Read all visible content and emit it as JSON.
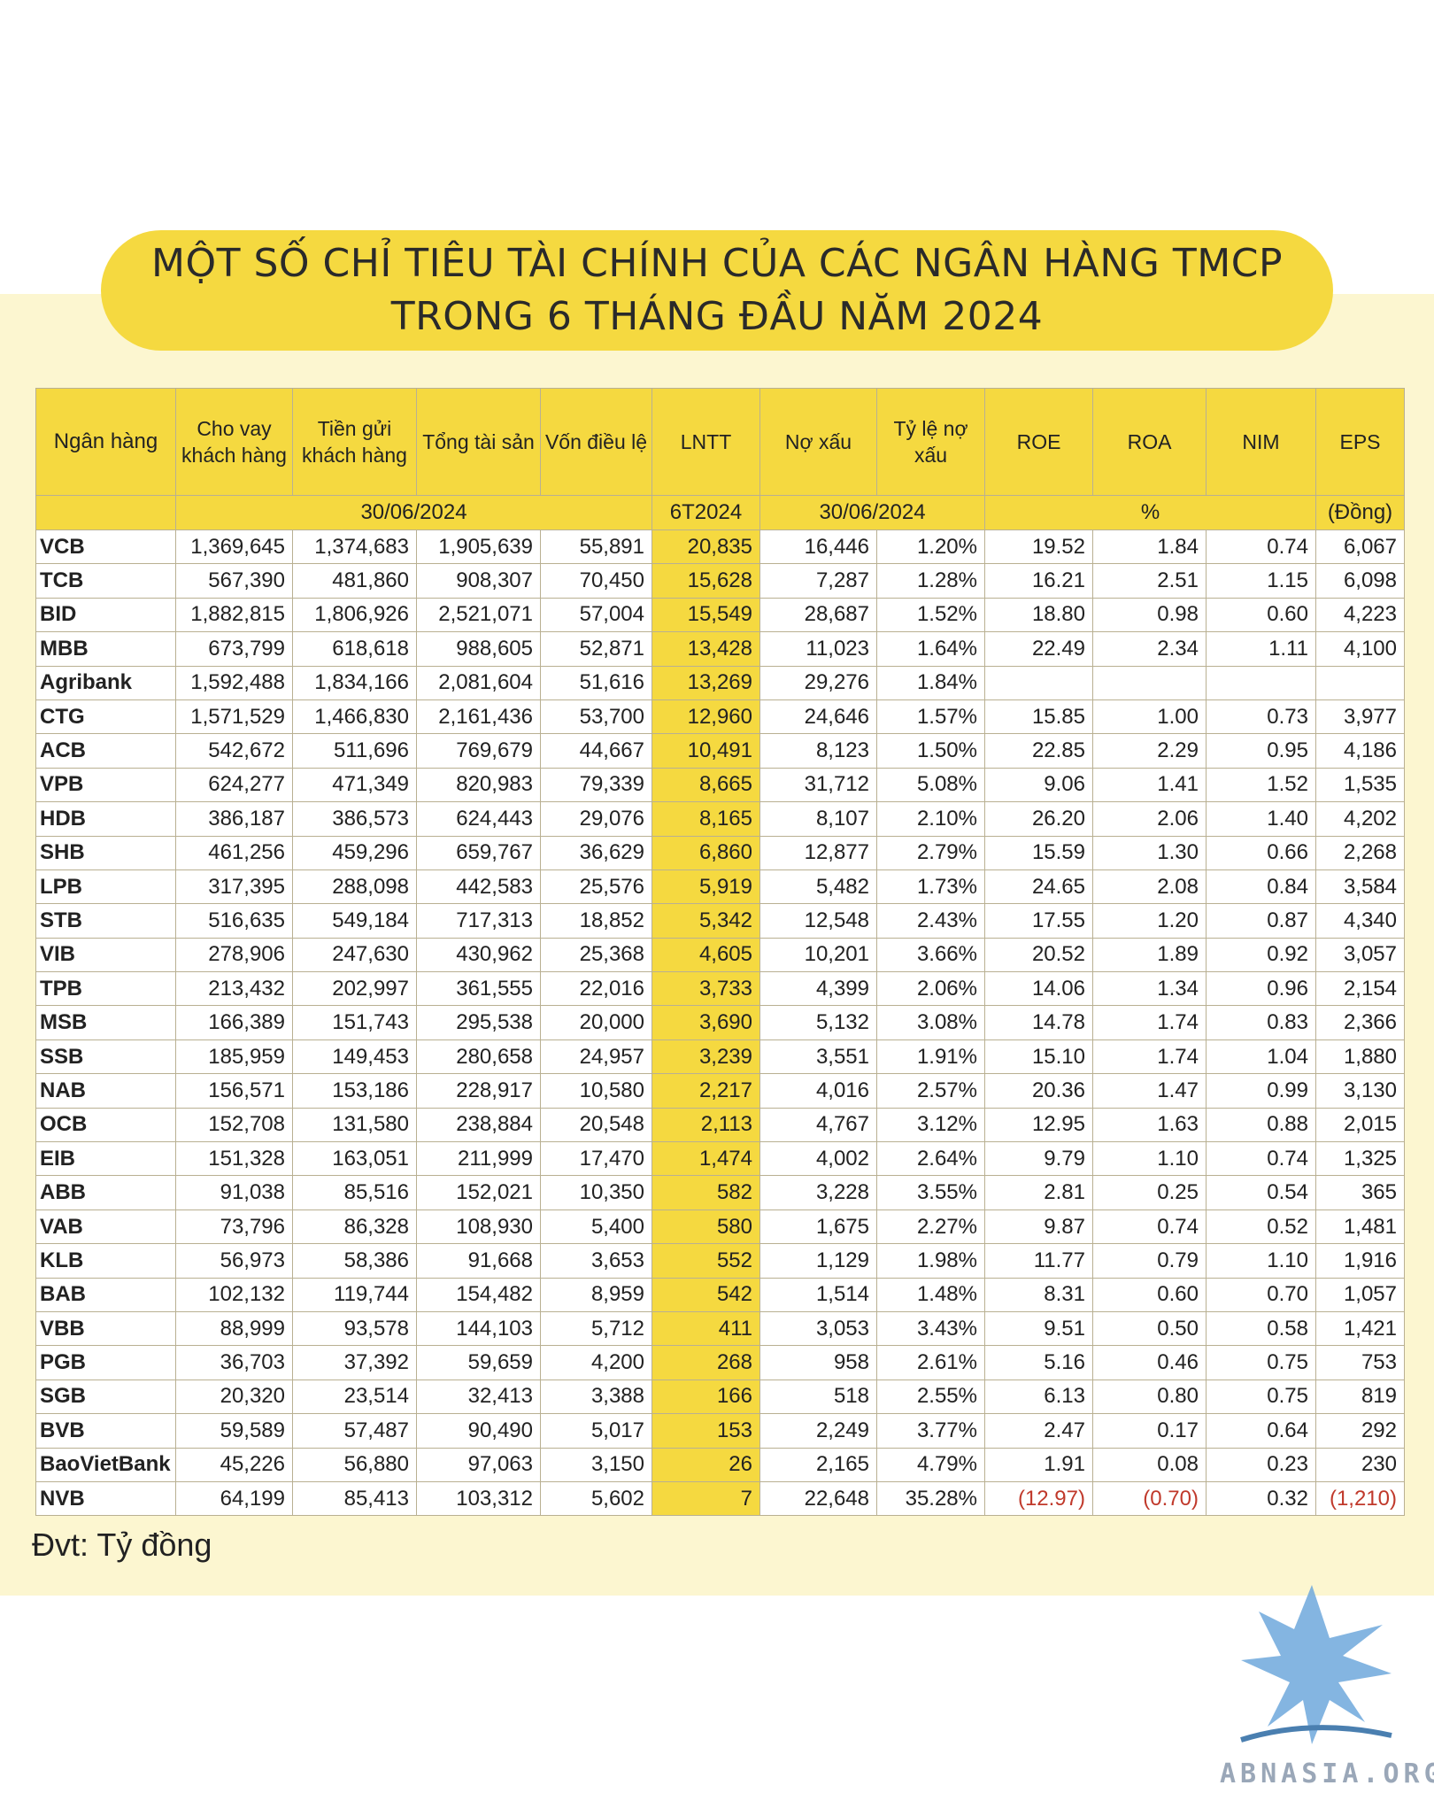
{
  "title": {
    "line1": "MỘT SỐ CHỈ TIÊU TÀI CHÍNH CỦA CÁC NGÂN HÀNG TMCP",
    "line2": "TRONG 6 THÁNG ĐẦU NĂM 2024"
  },
  "columns": {
    "bank": "Ngân hàng",
    "loans": "Cho vay khách hàng",
    "deposits": "Tiền gửi khách hàng",
    "assets": "Tổng tài sản",
    "capital": "Vốn điều lệ",
    "lntt": "LNTT",
    "npl": "Nợ xấu",
    "npl_ratio": "Tỷ lệ nợ xấu",
    "roe": "ROE",
    "roa": "ROA",
    "nim": "NIM",
    "eps": "EPS"
  },
  "subheader": {
    "date1": "30/06/2024",
    "period": "6T2024",
    "date2": "30/06/2024",
    "pct": "%",
    "eps_unit": "(Đồng)"
  },
  "colors": {
    "accent": "#f5d940",
    "panel": "#fcf6d0",
    "negative": "#c0392b"
  },
  "rows": [
    {
      "bank": "VCB",
      "loans": "1,369,645",
      "deposits": "1,374,683",
      "assets": "1,905,639",
      "capital": "55,891",
      "lntt": "20,835",
      "npl": "16,446",
      "npl_ratio": "1.20%",
      "roe": "19.52",
      "roa": "1.84",
      "nim": "0.74",
      "eps": "6,067"
    },
    {
      "bank": "TCB",
      "loans": "567,390",
      "deposits": "481,860",
      "assets": "908,307",
      "capital": "70,450",
      "lntt": "15,628",
      "npl": "7,287",
      "npl_ratio": "1.28%",
      "roe": "16.21",
      "roa": "2.51",
      "nim": "1.15",
      "eps": "6,098"
    },
    {
      "bank": "BID",
      "loans": "1,882,815",
      "deposits": "1,806,926",
      "assets": "2,521,071",
      "capital": "57,004",
      "lntt": "15,549",
      "npl": "28,687",
      "npl_ratio": "1.52%",
      "roe": "18.80",
      "roa": "0.98",
      "nim": "0.60",
      "eps": "4,223"
    },
    {
      "bank": "MBB",
      "loans": "673,799",
      "deposits": "618,618",
      "assets": "988,605",
      "capital": "52,871",
      "lntt": "13,428",
      "npl": "11,023",
      "npl_ratio": "1.64%",
      "roe": "22.49",
      "roa": "2.34",
      "nim": "1.11",
      "eps": "4,100"
    },
    {
      "bank": "Agribank",
      "loans": "1,592,488",
      "deposits": "1,834,166",
      "assets": "2,081,604",
      "capital": "51,616",
      "lntt": "13,269",
      "npl": "29,276",
      "npl_ratio": "1.84%",
      "roe": "",
      "roa": "",
      "nim": "",
      "eps": ""
    },
    {
      "bank": "CTG",
      "loans": "1,571,529",
      "deposits": "1,466,830",
      "assets": "2,161,436",
      "capital": "53,700",
      "lntt": "12,960",
      "npl": "24,646",
      "npl_ratio": "1.57%",
      "roe": "15.85",
      "roa": "1.00",
      "nim": "0.73",
      "eps": "3,977"
    },
    {
      "bank": "ACB",
      "loans": "542,672",
      "deposits": "511,696",
      "assets": "769,679",
      "capital": "44,667",
      "lntt": "10,491",
      "npl": "8,123",
      "npl_ratio": "1.50%",
      "roe": "22.85",
      "roa": "2.29",
      "nim": "0.95",
      "eps": "4,186"
    },
    {
      "bank": "VPB",
      "loans": "624,277",
      "deposits": "471,349",
      "assets": "820,983",
      "capital": "79,339",
      "lntt": "8,665",
      "npl": "31,712",
      "npl_ratio": "5.08%",
      "roe": "9.06",
      "roa": "1.41",
      "nim": "1.52",
      "eps": "1,535"
    },
    {
      "bank": "HDB",
      "loans": "386,187",
      "deposits": "386,573",
      "assets": "624,443",
      "capital": "29,076",
      "lntt": "8,165",
      "npl": "8,107",
      "npl_ratio": "2.10%",
      "roe": "26.20",
      "roa": "2.06",
      "nim": "1.40",
      "eps": "4,202"
    },
    {
      "bank": "SHB",
      "loans": "461,256",
      "deposits": "459,296",
      "assets": "659,767",
      "capital": "36,629",
      "lntt": "6,860",
      "npl": "12,877",
      "npl_ratio": "2.79%",
      "roe": "15.59",
      "roa": "1.30",
      "nim": "0.66",
      "eps": "2,268"
    },
    {
      "bank": "LPB",
      "loans": "317,395",
      "deposits": "288,098",
      "assets": "442,583",
      "capital": "25,576",
      "lntt": "5,919",
      "npl": "5,482",
      "npl_ratio": "1.73%",
      "roe": "24.65",
      "roa": "2.08",
      "nim": "0.84",
      "eps": "3,584"
    },
    {
      "bank": "STB",
      "loans": "516,635",
      "deposits": "549,184",
      "assets": "717,313",
      "capital": "18,852",
      "lntt": "5,342",
      "npl": "12,548",
      "npl_ratio": "2.43%",
      "roe": "17.55",
      "roa": "1.20",
      "nim": "0.87",
      "eps": "4,340"
    },
    {
      "bank": "VIB",
      "loans": "278,906",
      "deposits": "247,630",
      "assets": "430,962",
      "capital": "25,368",
      "lntt": "4,605",
      "npl": "10,201",
      "npl_ratio": "3.66%",
      "roe": "20.52",
      "roa": "1.89",
      "nim": "0.92",
      "eps": "3,057"
    },
    {
      "bank": "TPB",
      "loans": "213,432",
      "deposits": "202,997",
      "assets": "361,555",
      "capital": "22,016",
      "lntt": "3,733",
      "npl": "4,399",
      "npl_ratio": "2.06%",
      "roe": "14.06",
      "roa": "1.34",
      "nim": "0.96",
      "eps": "2,154"
    },
    {
      "bank": "MSB",
      "loans": "166,389",
      "deposits": "151,743",
      "assets": "295,538",
      "capital": "20,000",
      "lntt": "3,690",
      "npl": "5,132",
      "npl_ratio": "3.08%",
      "roe": "14.78",
      "roa": "1.74",
      "nim": "0.83",
      "eps": "2,366"
    },
    {
      "bank": "SSB",
      "loans": "185,959",
      "deposits": "149,453",
      "assets": "280,658",
      "capital": "24,957",
      "lntt": "3,239",
      "npl": "3,551",
      "npl_ratio": "1.91%",
      "roe": "15.10",
      "roa": "1.74",
      "nim": "1.04",
      "eps": "1,880"
    },
    {
      "bank": "NAB",
      "loans": "156,571",
      "deposits": "153,186",
      "assets": "228,917",
      "capital": "10,580",
      "lntt": "2,217",
      "npl": "4,016",
      "npl_ratio": "2.57%",
      "roe": "20.36",
      "roa": "1.47",
      "nim": "0.99",
      "eps": "3,130"
    },
    {
      "bank": "OCB",
      "loans": "152,708",
      "deposits": "131,580",
      "assets": "238,884",
      "capital": "20,548",
      "lntt": "2,113",
      "npl": "4,767",
      "npl_ratio": "3.12%",
      "roe": "12.95",
      "roa": "1.63",
      "nim": "0.88",
      "eps": "2,015"
    },
    {
      "bank": "EIB",
      "loans": "151,328",
      "deposits": "163,051",
      "assets": "211,999",
      "capital": "17,470",
      "lntt": "1,474",
      "npl": "4,002",
      "npl_ratio": "2.64%",
      "roe": "9.79",
      "roa": "1.10",
      "nim": "0.74",
      "eps": "1,325"
    },
    {
      "bank": "ABB",
      "loans": "91,038",
      "deposits": "85,516",
      "assets": "152,021",
      "capital": "10,350",
      "lntt": "582",
      "npl": "3,228",
      "npl_ratio": "3.55%",
      "roe": "2.81",
      "roa": "0.25",
      "nim": "0.54",
      "eps": "365"
    },
    {
      "bank": "VAB",
      "loans": "73,796",
      "deposits": "86,328",
      "assets": "108,930",
      "capital": "5,400",
      "lntt": "580",
      "npl": "1,675",
      "npl_ratio": "2.27%",
      "roe": "9.87",
      "roa": "0.74",
      "nim": "0.52",
      "eps": "1,481"
    },
    {
      "bank": "KLB",
      "loans": "56,973",
      "deposits": "58,386",
      "assets": "91,668",
      "capital": "3,653",
      "lntt": "552",
      "npl": "1,129",
      "npl_ratio": "1.98%",
      "roe": "11.77",
      "roa": "0.79",
      "nim": "1.10",
      "eps": "1,916"
    },
    {
      "bank": "BAB",
      "loans": "102,132",
      "deposits": "119,744",
      "assets": "154,482",
      "capital": "8,959",
      "lntt": "542",
      "npl": "1,514",
      "npl_ratio": "1.48%",
      "roe": "8.31",
      "roa": "0.60",
      "nim": "0.70",
      "eps": "1,057"
    },
    {
      "bank": "VBB",
      "loans": "88,999",
      "deposits": "93,578",
      "assets": "144,103",
      "capital": "5,712",
      "lntt": "411",
      "npl": "3,053",
      "npl_ratio": "3.43%",
      "roe": "9.51",
      "roa": "0.50",
      "nim": "0.58",
      "eps": "1,421"
    },
    {
      "bank": "PGB",
      "loans": "36,703",
      "deposits": "37,392",
      "assets": "59,659",
      "capital": "4,200",
      "lntt": "268",
      "npl": "958",
      "npl_ratio": "2.61%",
      "roe": "5.16",
      "roa": "0.46",
      "nim": "0.75",
      "eps": "753"
    },
    {
      "bank": "SGB",
      "loans": "20,320",
      "deposits": "23,514",
      "assets": "32,413",
      "capital": "3,388",
      "lntt": "166",
      "npl": "518",
      "npl_ratio": "2.55%",
      "roe": "6.13",
      "roa": "0.80",
      "nim": "0.75",
      "eps": "819"
    },
    {
      "bank": "BVB",
      "loans": "59,589",
      "deposits": "57,487",
      "assets": "90,490",
      "capital": "5,017",
      "lntt": "153",
      "npl": "2,249",
      "npl_ratio": "3.77%",
      "roe": "2.47",
      "roa": "0.17",
      "nim": "0.64",
      "eps": "292"
    },
    {
      "bank": "BaoVietBank",
      "loans": "45,226",
      "deposits": "56,880",
      "assets": "97,063",
      "capital": "3,150",
      "lntt": "26",
      "npl": "2,165",
      "npl_ratio": "4.79%",
      "roe": "1.91",
      "roa": "0.08",
      "nim": "0.23",
      "eps": "230"
    },
    {
      "bank": "NVB",
      "loans": "64,199",
      "deposits": "85,413",
      "assets": "103,312",
      "capital": "5,602",
      "lntt": "7",
      "npl": "22,648",
      "npl_ratio": "35.28%",
      "roe": "(12.97)",
      "roa": "(0.70)",
      "nim": "0.32",
      "eps": "(1,210)"
    }
  ],
  "unit_note": "Đvt: Tỷ đồng",
  "watermark": "ABNASIA.ORG",
  "logo_icon": "griffin-logo-icon"
}
